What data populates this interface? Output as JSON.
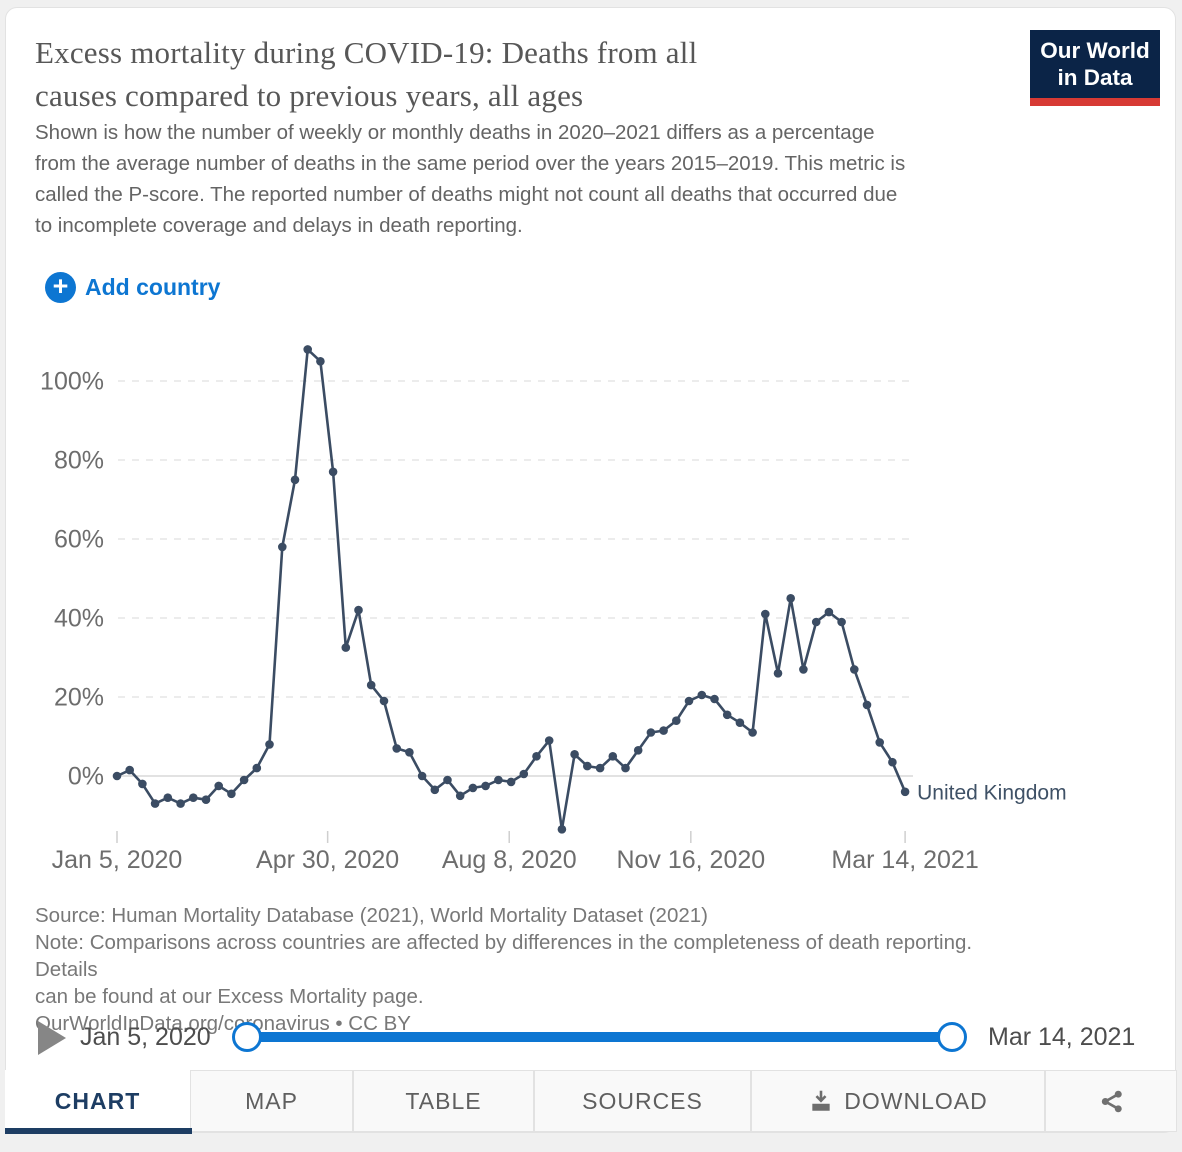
{
  "colors": {
    "accent_blue": "#0d76d2",
    "series_line": "#3b4c63",
    "active_tab_navy": "#1d3d63",
    "logo_navy": "#0b2447",
    "logo_red": "#d73a34"
  },
  "header": {
    "title_line1": "Excess mortality during COVID-19: Deaths from all",
    "title_line2": "causes compared to previous years, all ages",
    "subtitle_lines": [
      "Shown is how the number of weekly or monthly deaths in 2020–2021 differs as a percentage",
      "from the average number of deaths in the same period over the years 2015–2019. This metric is",
      "called the P-score. The reported number of deaths might not count all deaths that occurred due",
      "to incomplete coverage and delays in death reporting."
    ],
    "logo": {
      "line1": "Our World",
      "line2": "in Data"
    }
  },
  "controls": {
    "add_country_label": "Add country"
  },
  "chart_data": {
    "type": "line",
    "title": "Excess mortality during COVID-19: Deaths from all causes compared to previous years, all ages",
    "ylabel": "",
    "ytick_format": "percent",
    "yticks": [
      0,
      20,
      40,
      60,
      80,
      100
    ],
    "ylim": [
      -15,
      110
    ],
    "grid": "horizontal-dashed",
    "legend_position": "end-of-line-label",
    "xticks": [
      "Jan 5, 2020",
      "Apr 30, 2020",
      "Aug 8, 2020",
      "Nov 16, 2020",
      "Mar 14, 2021"
    ],
    "xtick_days": [
      0,
      116,
      216,
      316,
      434
    ],
    "series": [
      {
        "name": "United Kingdom",
        "color": "#3b4c63",
        "dates": [
          "Jan 5, 2020",
          "Jan 12, 2020",
          "Jan 19, 2020",
          "Jan 26, 2020",
          "Feb 2, 2020",
          "Feb 9, 2020",
          "Feb 16, 2020",
          "Feb 23, 2020",
          "Mar 1, 2020",
          "Mar 8, 2020",
          "Mar 15, 2020",
          "Mar 22, 2020",
          "Mar 29, 2020",
          "Apr 5, 2020",
          "Apr 12, 2020",
          "Apr 19, 2020",
          "Apr 26, 2020",
          "May 3, 2020",
          "May 10, 2020",
          "May 17, 2020",
          "May 24, 2020",
          "May 31, 2020",
          "Jun 7, 2020",
          "Jun 14, 2020",
          "Jun 21, 2020",
          "Jun 28, 2020",
          "Jul 5, 2020",
          "Jul 12, 2020",
          "Jul 19, 2020",
          "Jul 26, 2020",
          "Aug 2, 2020",
          "Aug 9, 2020",
          "Aug 16, 2020",
          "Aug 23, 2020",
          "Aug 30, 2020",
          "Sep 6, 2020",
          "Sep 13, 2020",
          "Sep 20, 2020",
          "Sep 27, 2020",
          "Oct 4, 2020",
          "Oct 11, 2020",
          "Oct 18, 2020",
          "Oct 25, 2020",
          "Nov 1, 2020",
          "Nov 8, 2020",
          "Nov 15, 2020",
          "Nov 22, 2020",
          "Nov 29, 2020",
          "Dec 6, 2020",
          "Dec 13, 2020",
          "Dec 20, 2020",
          "Dec 27, 2020",
          "Jan 3, 2021",
          "Jan 10, 2021",
          "Jan 17, 2021",
          "Jan 24, 2021",
          "Jan 31, 2021",
          "Feb 7, 2021",
          "Feb 14, 2021",
          "Feb 21, 2021",
          "Feb 28, 2021",
          "Mar 7, 2021",
          "Mar 14, 2021"
        ],
        "values": [
          0,
          1.5,
          -2,
          -7,
          -5.5,
          -7,
          -5.5,
          -6,
          -2.5,
          -4.5,
          -1,
          2,
          8,
          58,
          75,
          108,
          105,
          77,
          32.5,
          42,
          23,
          19,
          7,
          6,
          0,
          -3.5,
          -1,
          -5,
          -3,
          -2.5,
          -1,
          -1.5,
          0.5,
          5,
          9,
          -13.5,
          5.5,
          2.5,
          2,
          5,
          2,
          6.5,
          11,
          11.5,
          14,
          19,
          20.5,
          19.5,
          15.5,
          13.5,
          11,
          41,
          26,
          45,
          27,
          39,
          41.5,
          39,
          27,
          18,
          8.5,
          3.5,
          -4
        ]
      }
    ]
  },
  "footer": {
    "lines": [
      "Source: Human Mortality Database (2021), World Mortality Dataset (2021)",
      "Note: Comparisons across countries are affected by differences in the completeness of death reporting.",
      "Details",
      "can be found at our Excess Mortality page.",
      "OurWorldInData.org/coronavirus • CC BY"
    ]
  },
  "timeline": {
    "start_label": "Jan 5, 2020",
    "end_label": "Mar 14, 2021"
  },
  "tabs": [
    {
      "label": "CHART",
      "active": true
    },
    {
      "label": "MAP"
    },
    {
      "label": "TABLE"
    },
    {
      "label": "SOURCES"
    },
    {
      "label": "DOWNLOAD"
    },
    {
      "label": ""
    }
  ]
}
